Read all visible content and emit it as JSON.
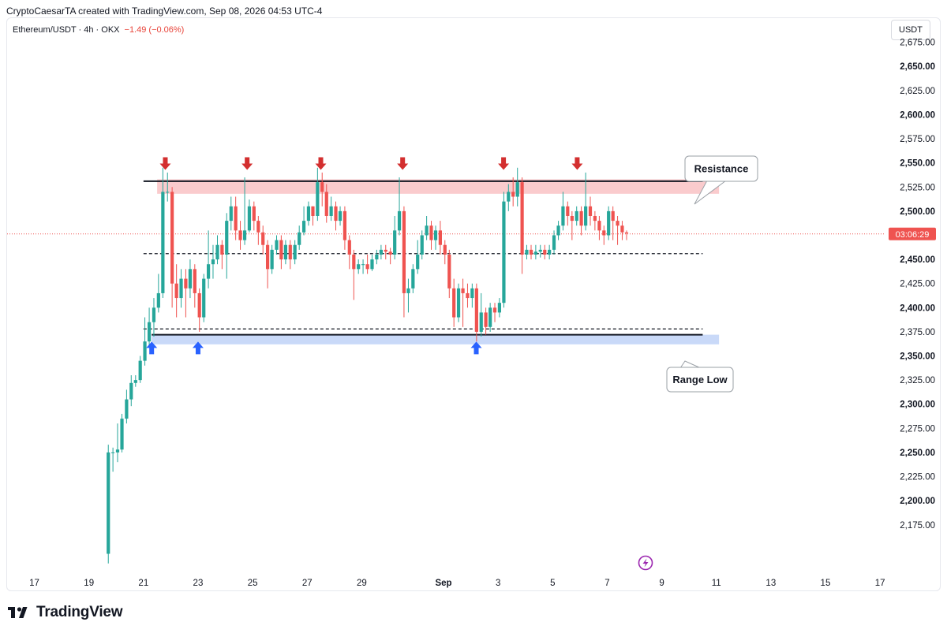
{
  "header": {
    "caption": "CryptoCaesarTA created with TradingView.com, Sep 08, 2026 04:53 UTC-4",
    "symbol": "Ethereum/USDT · 4h · OKX",
    "change": "−1.49 (−0.06%)",
    "currency": "USDT"
  },
  "footer": {
    "brand": "TradingView"
  },
  "chart_data": {
    "type": "candlestick",
    "price_axis": {
      "ticks": [
        "2,675.00",
        "2,650.00",
        "2,625.00",
        "2,600.00",
        "2,575.00",
        "2,550.00",
        "2,525.00",
        "2,500.00",
        "2,475.00",
        "2,450.00",
        "2,425.00",
        "2,400.00",
        "2,375.00",
        "2,350.00",
        "2,325.00",
        "2,300.00",
        "2,275.00",
        "2,250.00",
        "2,225.00",
        "2,200.00",
        "2,175.00"
      ],
      "tick_values": [
        2675,
        2650,
        2625,
        2600,
        2575,
        2550,
        2525,
        2500,
        2475,
        2450,
        2425,
        2400,
        2375,
        2350,
        2325,
        2300,
        2275,
        2250,
        2225,
        2200,
        2175
      ],
      "range": [
        2125,
        2700
      ]
    },
    "time_axis": {
      "labels": [
        "17",
        "19",
        "21",
        "23",
        "25",
        "27",
        "29",
        "Sep",
        "3",
        "5",
        "7",
        "9",
        "11",
        "13",
        "15",
        "17"
      ],
      "days": [
        17,
        19,
        21,
        23,
        25,
        27,
        29,
        32,
        34,
        36,
        38,
        40,
        42,
        44,
        46,
        48
      ],
      "range": [
        16.0,
        48.2
      ]
    },
    "countdown": "03:06:29",
    "current_price": 2476.4,
    "colors": {
      "up": "#26a69a",
      "down": "#ef5350",
      "resistance_zone": "#f8b9bc",
      "support_zone": "#b7ccf5",
      "arrow_down": "#d32f2f",
      "arrow_up": "#2962ff"
    },
    "annotations": [
      {
        "type": "label",
        "text": "Resistance"
      },
      {
        "type": "label",
        "text": "Range Low"
      },
      {
        "type": "zone",
        "name": "resistance",
        "from": 2518,
        "to": 2533,
        "start_day": 21.5,
        "end_day": 42.1
      },
      {
        "type": "zone",
        "name": "range-low",
        "from": 2362,
        "to": 2372,
        "start_day": 21.3,
        "end_day": 42.1
      },
      {
        "type": "hline",
        "value": 2531,
        "style": "solid",
        "start_day": 21.0,
        "end_day": 41.5
      },
      {
        "type": "hline",
        "value": 2456,
        "style": "dashed",
        "start_day": 21.0,
        "end_day": 41.5
      },
      {
        "type": "hline",
        "value": 2378,
        "style": "dashed",
        "start_day": 21.0,
        "end_day": 41.5
      },
      {
        "type": "hline",
        "value": 2372,
        "style": "solid",
        "start_day": 21.3,
        "end_day": 41.5
      }
    ],
    "arrows_down": [
      {
        "day": 21.8,
        "value": 2546
      },
      {
        "day": 24.8,
        "value": 2546
      },
      {
        "day": 27.5,
        "value": 2546
      },
      {
        "day": 30.5,
        "value": 2546
      },
      {
        "day": 34.2,
        "value": 2546
      },
      {
        "day": 36.9,
        "value": 2546
      }
    ],
    "arrows_up": [
      {
        "day": 21.3,
        "value": 2355
      },
      {
        "day": 23.0,
        "value": 2355
      },
      {
        "day": 33.2,
        "value": 2355
      }
    ],
    "candles": [
      [
        19.71,
        2145,
        2250,
        2135,
        2258
      ],
      [
        19.88,
        2250,
        2250,
        2230,
        2255
      ],
      [
        20.05,
        2250,
        2253,
        2240,
        2280
      ],
      [
        20.21,
        2253,
        2285,
        2250,
        2290
      ],
      [
        20.38,
        2285,
        2305,
        2280,
        2315
      ],
      [
        20.55,
        2305,
        2322,
        2298,
        2330
      ],
      [
        20.71,
        2322,
        2325,
        2318,
        2330
      ],
      [
        20.88,
        2325,
        2345,
        2322,
        2350
      ],
      [
        21.05,
        2345,
        2365,
        2340,
        2390
      ],
      [
        21.21,
        2365,
        2385,
        2360,
        2400
      ],
      [
        21.38,
        2385,
        2400,
        2370,
        2410
      ],
      [
        21.55,
        2400,
        2415,
        2395,
        2435
      ],
      [
        21.71,
        2415,
        2520,
        2410,
        2545
      ],
      [
        21.88,
        2520,
        2520,
        2510,
        2540
      ],
      [
        22.05,
        2520,
        2425,
        2400,
        2525
      ],
      [
        22.21,
        2425,
        2410,
        2390,
        2445
      ],
      [
        22.38,
        2410,
        2430,
        2400,
        2440
      ],
      [
        22.55,
        2430,
        2420,
        2390,
        2440
      ],
      [
        22.71,
        2420,
        2440,
        2410,
        2450
      ],
      [
        22.88,
        2440,
        2415,
        2400,
        2445
      ],
      [
        23.05,
        2415,
        2390,
        2375,
        2420
      ],
      [
        23.21,
        2390,
        2430,
        2385,
        2435
      ],
      [
        23.38,
        2430,
        2445,
        2420,
        2480
      ],
      [
        23.55,
        2445,
        2450,
        2430,
        2465
      ],
      [
        23.71,
        2450,
        2465,
        2445,
        2475
      ],
      [
        23.88,
        2465,
        2455,
        2440,
        2470
      ],
      [
        24.05,
        2455,
        2490,
        2430,
        2498
      ],
      [
        24.21,
        2490,
        2505,
        2480,
        2515
      ],
      [
        24.38,
        2505,
        2480,
        2470,
        2515
      ],
      [
        24.55,
        2480,
        2470,
        2460,
        2490
      ],
      [
        24.71,
        2470,
        2480,
        2465,
        2535
      ],
      [
        24.88,
        2480,
        2505,
        2478,
        2512
      ],
      [
        25.05,
        2505,
        2490,
        2480,
        2510
      ],
      [
        25.21,
        2490,
        2478,
        2465,
        2495
      ],
      [
        25.38,
        2478,
        2465,
        2455,
        2485
      ],
      [
        25.55,
        2465,
        2440,
        2420,
        2470
      ],
      [
        25.71,
        2440,
        2460,
        2435,
        2465
      ],
      [
        25.88,
        2460,
        2470,
        2455,
        2475
      ],
      [
        26.05,
        2470,
        2450,
        2440,
        2475
      ],
      [
        26.21,
        2450,
        2465,
        2445,
        2470
      ],
      [
        26.38,
        2465,
        2450,
        2440,
        2470
      ],
      [
        26.55,
        2450,
        2465,
        2445,
        2470
      ],
      [
        26.71,
        2465,
        2478,
        2460,
        2485
      ],
      [
        26.88,
        2478,
        2490,
        2475,
        2505
      ],
      [
        27.05,
        2490,
        2505,
        2485,
        2510
      ],
      [
        27.21,
        2505,
        2495,
        2485,
        2505
      ],
      [
        27.38,
        2495,
        2530,
        2490,
        2545
      ],
      [
        27.55,
        2530,
        2520,
        2505,
        2540
      ],
      [
        27.71,
        2520,
        2495,
        2488,
        2528
      ],
      [
        27.88,
        2495,
        2505,
        2490,
        2515
      ],
      [
        28.05,
        2505,
        2490,
        2480,
        2510
      ],
      [
        28.21,
        2490,
        2500,
        2485,
        2505
      ],
      [
        28.38,
        2500,
        2470,
        2460,
        2505
      ],
      [
        28.55,
        2470,
        2455,
        2440,
        2475
      ],
      [
        28.71,
        2455,
        2440,
        2408,
        2460
      ],
      [
        28.88,
        2440,
        2445,
        2435,
        2450
      ],
      [
        29.05,
        2445,
        2445,
        2435,
        2450
      ],
      [
        29.21,
        2445,
        2440,
        2435,
        2455
      ],
      [
        29.38,
        2440,
        2450,
        2438,
        2455
      ],
      [
        29.55,
        2450,
        2455,
        2445,
        2460
      ],
      [
        29.71,
        2455,
        2460,
        2450,
        2465
      ],
      [
        29.88,
        2460,
        2458,
        2450,
        2465
      ],
      [
        30.05,
        2458,
        2455,
        2445,
        2462
      ],
      [
        30.21,
        2455,
        2480,
        2450,
        2495
      ],
      [
        30.38,
        2480,
        2500,
        2475,
        2535
      ],
      [
        30.55,
        2500,
        2415,
        2390,
        2505
      ],
      [
        30.71,
        2415,
        2420,
        2395,
        2430
      ],
      [
        30.88,
        2420,
        2440,
        2415,
        2445
      ],
      [
        31.05,
        2440,
        2455,
        2435,
        2470
      ],
      [
        31.21,
        2455,
        2475,
        2450,
        2480
      ],
      [
        31.38,
        2475,
        2485,
        2470,
        2495
      ],
      [
        31.55,
        2485,
        2470,
        2460,
        2490
      ],
      [
        31.71,
        2470,
        2480,
        2460,
        2485
      ],
      [
        31.88,
        2480,
        2465,
        2455,
        2490
      ],
      [
        32.05,
        2465,
        2455,
        2445,
        2470
      ],
      [
        32.21,
        2455,
        2420,
        2410,
        2460
      ],
      [
        32.38,
        2420,
        2390,
        2380,
        2430
      ],
      [
        32.55,
        2390,
        2420,
        2385,
        2425
      ],
      [
        32.71,
        2420,
        2415,
        2380,
        2430
      ],
      [
        32.88,
        2415,
        2410,
        2400,
        2425
      ],
      [
        33.05,
        2410,
        2420,
        2400,
        2425
      ],
      [
        33.21,
        2420,
        2375,
        2365,
        2425
      ],
      [
        33.38,
        2375,
        2395,
        2370,
        2415
      ],
      [
        33.55,
        2395,
        2380,
        2372,
        2400
      ],
      [
        33.71,
        2380,
        2400,
        2375,
        2405
      ],
      [
        33.88,
        2400,
        2395,
        2385,
        2405
      ],
      [
        34.05,
        2395,
        2405,
        2390,
        2410
      ],
      [
        34.21,
        2405,
        2510,
        2400,
        2520
      ],
      [
        34.38,
        2510,
        2520,
        2500,
        2528
      ],
      [
        34.55,
        2520,
        2515,
        2505,
        2535
      ],
      [
        34.71,
        2515,
        2530,
        2505,
        2545
      ],
      [
        34.88,
        2530,
        2455,
        2435,
        2535
      ],
      [
        35.05,
        2455,
        2460,
        2450,
        2465
      ],
      [
        35.21,
        2460,
        2455,
        2450,
        2465
      ],
      [
        35.38,
        2455,
        2458,
        2450,
        2465
      ],
      [
        35.55,
        2458,
        2460,
        2452,
        2465
      ],
      [
        35.71,
        2460,
        2455,
        2450,
        2465
      ],
      [
        35.88,
        2455,
        2460,
        2450,
        2465
      ],
      [
        36.05,
        2460,
        2475,
        2455,
        2480
      ],
      [
        36.21,
        2475,
        2485,
        2470,
        2490
      ],
      [
        36.38,
        2485,
        2505,
        2480,
        2520
      ],
      [
        36.55,
        2505,
        2495,
        2485,
        2510
      ],
      [
        36.71,
        2495,
        2490,
        2470,
        2500
      ],
      [
        36.88,
        2490,
        2500,
        2485,
        2505
      ],
      [
        37.05,
        2500,
        2485,
        2475,
        2505
      ],
      [
        37.21,
        2485,
        2505,
        2480,
        2540
      ],
      [
        37.38,
        2505,
        2495,
        2485,
        2515
      ],
      [
        37.55,
        2495,
        2490,
        2480,
        2500
      ],
      [
        37.71,
        2490,
        2480,
        2470,
        2495
      ],
      [
        37.88,
        2480,
        2475,
        2465,
        2485
      ],
      [
        38.05,
        2475,
        2500,
        2470,
        2505
      ],
      [
        38.21,
        2500,
        2490,
        2470,
        2505
      ],
      [
        38.38,
        2490,
        2485,
        2465,
        2495
      ],
      [
        38.55,
        2485,
        2478,
        2470,
        2490
      ],
      [
        38.71,
        2478,
        2477,
        2470,
        2480
      ]
    ]
  }
}
